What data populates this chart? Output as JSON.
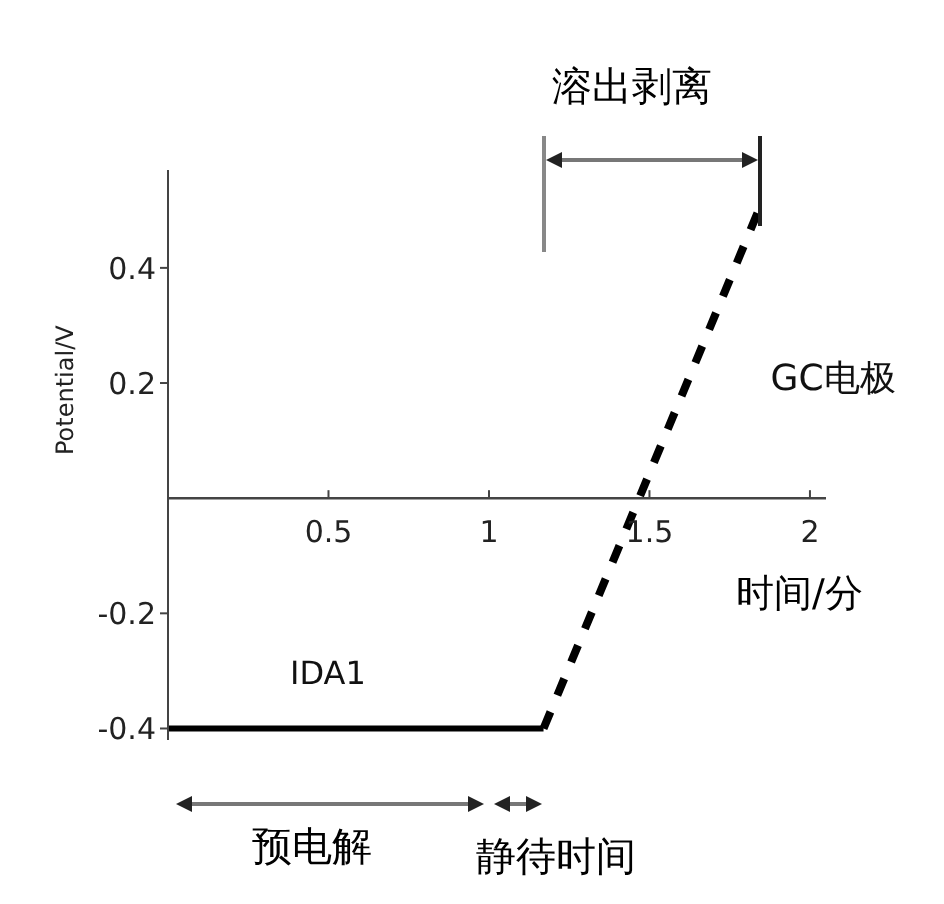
{
  "chart_data": {
    "type": "line",
    "xlabel": "时间/分",
    "ylabel": "Potential/V",
    "xlim": [
      0,
      2.05
    ],
    "ylim": [
      -0.42,
      0.57
    ],
    "xticks": [
      0.5,
      1,
      1.5,
      2
    ],
    "yticks": [
      -0.4,
      -0.2,
      0.2,
      0.4
    ],
    "grid": false,
    "marker": "none",
    "series": [
      {
        "name": "IDA1",
        "color": "#000000",
        "line_style": "solid",
        "x": [
          0,
          1.17
        ],
        "values": [
          -0.4,
          -0.4
        ]
      },
      {
        "name": "GC电极",
        "color": "#000000",
        "line_style": "dashed",
        "x": [
          1.17,
          1.84
        ],
        "values": [
          -0.4,
          0.5
        ]
      }
    ],
    "annotations": [
      "溶出剥离",
      "预电解",
      "静待时间"
    ]
  }
}
